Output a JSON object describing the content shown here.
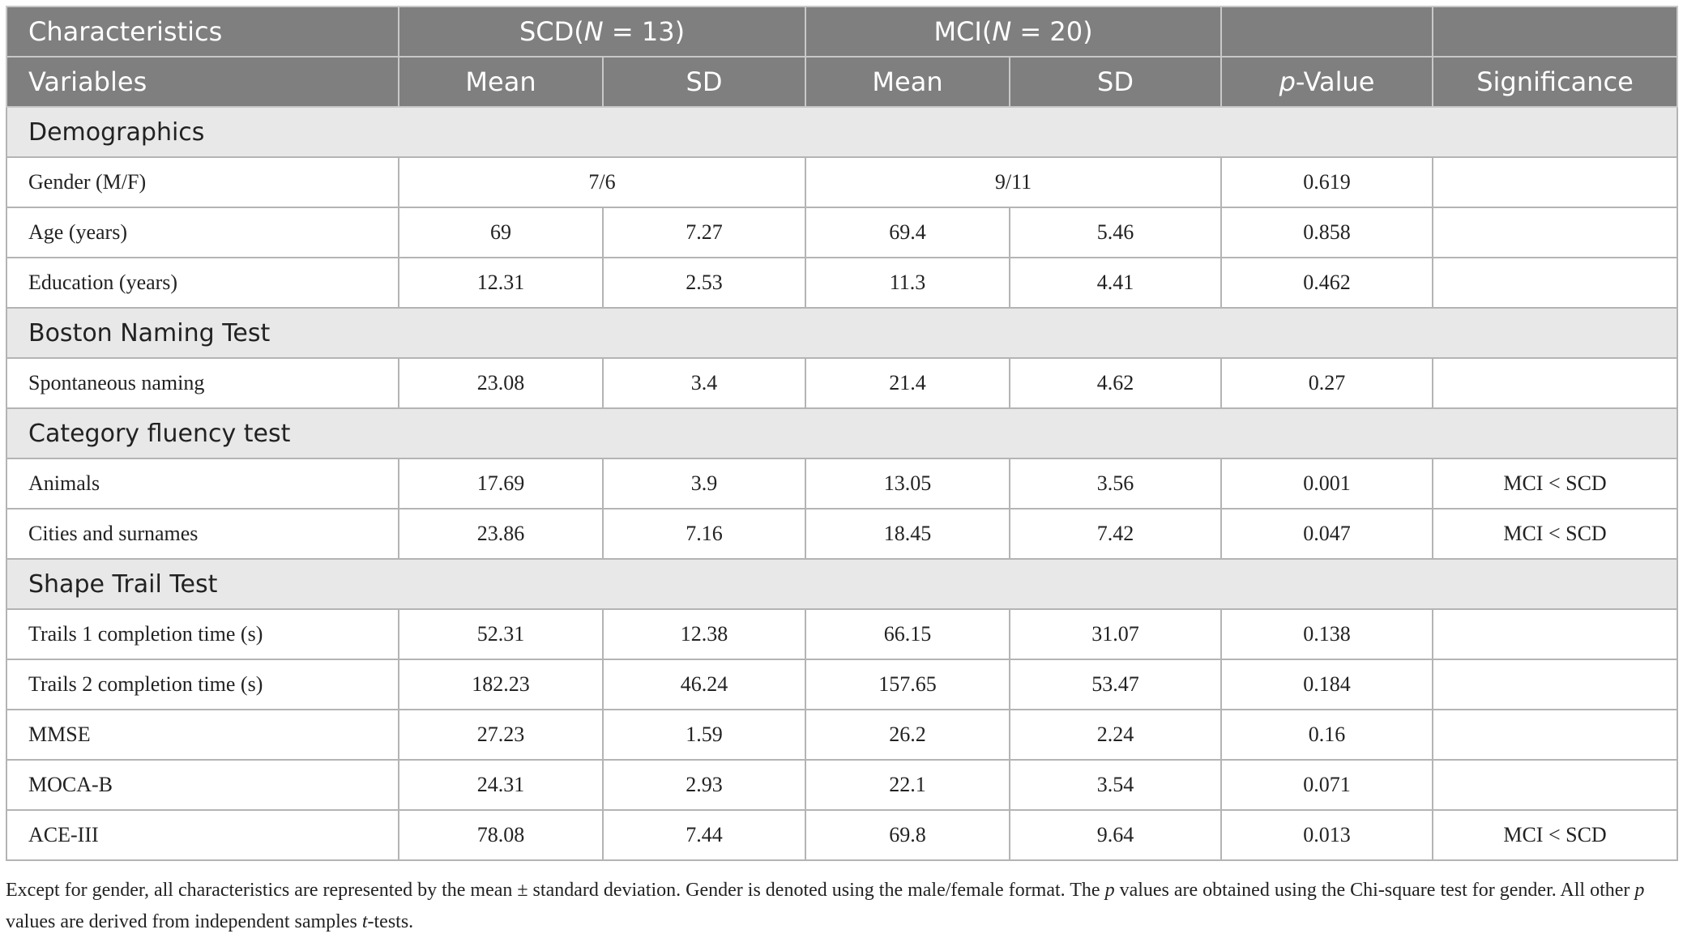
{
  "header": {
    "characteristics": "Characteristics",
    "scd": [
      "SCD(",
      "N",
      " = 13)"
    ],
    "mci": [
      "MCI(",
      "N",
      " = 20)"
    ],
    "variables": "Variables",
    "mean": "Mean",
    "sd": "SD",
    "p_value": [
      "p",
      "-Value"
    ],
    "significance": "Significance"
  },
  "sections": [
    {
      "title": "Demographics",
      "rows": [
        {
          "label": "Gender (M/F)",
          "scd": "7/6",
          "mci": "9/11",
          "p": "0.619"
        },
        {
          "label": "Age (years)",
          "values": [
            "69",
            "7.27",
            "69.4",
            "5.46"
          ],
          "p": "0.858"
        },
        {
          "label": "Education (years)",
          "values": [
            "12.31",
            "2.53",
            "11.3",
            "4.41"
          ],
          "p": "0.462"
        }
      ]
    },
    {
      "title": "Boston Naming Test",
      "rows": [
        {
          "label": "Spontaneous naming",
          "values": [
            "23.08",
            "3.4",
            "21.4",
            "4.62"
          ],
          "p": "0.27"
        }
      ]
    },
    {
      "title": "Category fluency test",
      "rows": [
        {
          "label": "Animals",
          "values": [
            "17.69",
            "3.9",
            "13.05",
            "3.56"
          ],
          "p": "0.001",
          "significance": "MCI < SCD"
        },
        {
          "label": "Cities and surnames",
          "values": [
            "23.86",
            "7.16",
            "18.45",
            "7.42"
          ],
          "p": "0.047",
          "significance": "MCI < SCD"
        }
      ]
    },
    {
      "title": "Shape Trail Test",
      "rows": [
        {
          "label": "Trails 1 completion time (s)",
          "values": [
            "52.31",
            "12.38",
            "66.15",
            "31.07"
          ],
          "p": "0.138"
        },
        {
          "label": "Trails 2 completion time (s)",
          "values": [
            "182.23",
            "46.24",
            "157.65",
            "53.47"
          ],
          "p": "0.184"
        },
        {
          "label": "MMSE",
          "values": [
            "27.23",
            "1.59",
            "26.2",
            "2.24"
          ],
          "p": "0.16"
        },
        {
          "label": "MOCA-B",
          "values": [
            "24.31",
            "2.93",
            "22.1",
            "3.54"
          ],
          "p": "0.071"
        },
        {
          "label": "ACE-III",
          "values": [
            "78.08",
            "7.44",
            "69.8",
            "9.64"
          ],
          "p": "0.013",
          "significance": "MCI < SCD"
        }
      ]
    }
  ],
  "footnote": [
    "Except for gender, all characteristics are represented by the mean ± standard deviation. Gender is denoted using the male/female format. The ",
    "p",
    " values are obtained using the Chi-square test for gender. All other ",
    "p",
    " values are derived from independent samples ",
    "t",
    "-tests."
  ]
}
